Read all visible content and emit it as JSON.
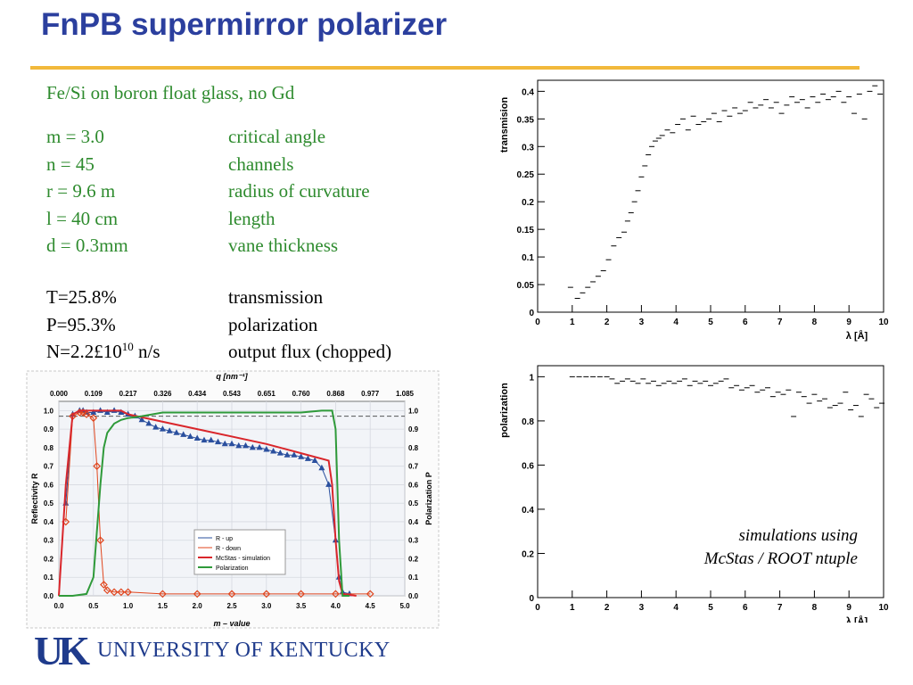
{
  "slide": {
    "title": "FnPB supermirror polarizer",
    "subtitle": "Fe/Si on boron float glass, no Gd",
    "params": [
      {
        "k": "m = 3.0",
        "v": "critical angle"
      },
      {
        "k": "n  = 45",
        "v": "channels"
      },
      {
        "k": "r   = 9.6 m",
        "v": "radius of curvature"
      },
      {
        "k": "l   = 40 cm",
        "v": "length"
      },
      {
        "k": "d  = 0.3mm",
        "v": "vane thickness"
      }
    ],
    "results": [
      {
        "k": "T=25.8%",
        "v": "transmission"
      },
      {
        "k": "P=95.3%",
        "v": "polarization"
      },
      {
        "k_base": "N=2.2£10",
        "k_exp": "10",
        "k_unit": " n/s",
        "v": "output flux (chopped)"
      }
    ],
    "caption_line1": "simulations using",
    "caption_line2": "McStas / ROOT ntuple",
    "logo_mark": "UK",
    "logo_text": "UNIVERSITY OF KENTUCKY",
    "colors": {
      "title": "#2b3f9e",
      "rule": "#f2b93b",
      "green_text": "#2e8b2e",
      "logo": "#1f3b8c"
    }
  },
  "chart_data": [
    {
      "id": "exp",
      "type": "line",
      "xlabel": "m – value",
      "top_axis_label": "q [nm⁻¹]",
      "ylabel_left": "Reflectivity R",
      "ylabel_right": "Polarization P",
      "xlim": [
        0,
        5.0
      ],
      "ylim": [
        0,
        1.05
      ],
      "x_ticks": [
        "0.0",
        "0.5",
        "1.0",
        "1.5",
        "2.0",
        "2.5",
        "3.0",
        "3.5",
        "4.0",
        "4.5",
        "5.0"
      ],
      "top_ticks": [
        "0.000",
        "0.109",
        "0.217",
        "0.326",
        "0.434",
        "0.543",
        "0.651",
        "0.760",
        "0.868",
        "0.977",
        "1.085"
      ],
      "y_ticks": [
        "0.0",
        "0.1",
        "0.2",
        "0.3",
        "0.4",
        "0.5",
        "0.6",
        "0.7",
        "0.8",
        "0.9",
        "1.0"
      ],
      "legend": [
        "R - up",
        "R - down",
        "McStas - simulation",
        "Polarization"
      ],
      "legend_position": "lower-center",
      "colors": {
        "up": "#2a4f9e",
        "down": "#e0461e",
        "sim": "#d9262b",
        "pol": "#2f9a3a",
        "ref": "#555555"
      },
      "dashed_reference": 0.97,
      "series": [
        {
          "name": "R - up",
          "x": [
            0.1,
            0.2,
            0.3,
            0.35,
            0.4,
            0.5,
            0.6,
            0.7,
            0.8,
            0.9,
            1.0,
            1.1,
            1.2,
            1.3,
            1.4,
            1.5,
            1.6,
            1.7,
            1.8,
            1.9,
            2.0,
            2.1,
            2.2,
            2.3,
            2.4,
            2.5,
            2.6,
            2.7,
            2.8,
            2.9,
            3.0,
            3.1,
            3.2,
            3.3,
            3.4,
            3.5,
            3.6,
            3.7,
            3.8,
            3.9,
            4.0,
            4.05,
            4.1,
            4.2
          ],
          "y": [
            0.5,
            0.98,
            1.0,
            1.0,
            0.99,
            0.99,
            1.0,
            0.99,
            1.0,
            0.99,
            0.98,
            0.97,
            0.95,
            0.93,
            0.91,
            0.9,
            0.89,
            0.88,
            0.87,
            0.86,
            0.85,
            0.84,
            0.84,
            0.83,
            0.82,
            0.82,
            0.81,
            0.81,
            0.8,
            0.8,
            0.79,
            0.78,
            0.77,
            0.76,
            0.76,
            0.75,
            0.74,
            0.73,
            0.69,
            0.6,
            0.3,
            0.1,
            0.02,
            0.01
          ]
        },
        {
          "name": "R - down",
          "x": [
            0.1,
            0.2,
            0.3,
            0.35,
            0.4,
            0.5,
            0.55,
            0.6,
            0.65,
            0.7,
            0.8,
            0.9,
            1.0,
            1.5,
            2.0,
            2.5,
            3.0,
            3.5,
            4.0,
            4.5
          ],
          "y": [
            0.4,
            0.97,
            0.99,
            0.99,
            0.98,
            0.96,
            0.7,
            0.3,
            0.06,
            0.03,
            0.02,
            0.02,
            0.02,
            0.01,
            0.01,
            0.01,
            0.01,
            0.01,
            0.01,
            0.01
          ]
        },
        {
          "name": "McStas - simulation",
          "x": [
            0.0,
            0.1,
            0.2,
            0.3,
            0.5,
            0.9,
            1.0,
            2.0,
            3.0,
            3.5,
            3.9,
            3.95,
            4.0,
            4.05,
            4.1,
            4.3
          ],
          "y": [
            0.0,
            0.6,
            0.98,
            1.0,
            1.0,
            1.0,
            0.98,
            0.9,
            0.82,
            0.77,
            0.73,
            0.6,
            0.3,
            0.08,
            0.01,
            0.0
          ]
        },
        {
          "name": "Polarization",
          "x": [
            0.0,
            0.2,
            0.4,
            0.5,
            0.6,
            0.65,
            0.7,
            0.8,
            0.9,
            1.0,
            1.2,
            1.5,
            2.0,
            2.5,
            3.0,
            3.5,
            3.8,
            3.95,
            4.0,
            4.05,
            4.1,
            4.2
          ],
          "y": [
            0.0,
            0.0,
            0.01,
            0.1,
            0.6,
            0.8,
            0.88,
            0.93,
            0.95,
            0.96,
            0.97,
            0.99,
            0.99,
            0.99,
            0.99,
            0.99,
            1.0,
            1.0,
            0.9,
            0.3,
            0.0,
            0.0
          ]
        }
      ]
    },
    {
      "id": "trans",
      "type": "scatter",
      "xlabel": "λ  [Å]",
      "ylabel": "transmision",
      "xlim": [
        0,
        10
      ],
      "ylim": [
        0,
        0.42
      ],
      "x_ticks": [
        "0",
        "1",
        "2",
        "3",
        "4",
        "5",
        "6",
        "7",
        "8",
        "9",
        "10"
      ],
      "y_ticks": [
        "0",
        "0.05",
        "0.1",
        "0.15",
        "0.2",
        "0.25",
        "0.3",
        "0.35",
        "0.4"
      ],
      "series": [
        {
          "name": "",
          "x": [
            0.95,
            1.05,
            1.15,
            1.3,
            1.45,
            1.6,
            1.75,
            1.9,
            2.05,
            2.2,
            2.35,
            2.5,
            2.6,
            2.7,
            2.8,
            2.9,
            3.0,
            3.1,
            3.2,
            3.3,
            3.4,
            3.5,
            3.6,
            3.75,
            3.9,
            4.05,
            4.2,
            4.35,
            4.5,
            4.65,
            4.8,
            4.95,
            5.1,
            5.25,
            5.4,
            5.55,
            5.7,
            5.85,
            6.0,
            6.15,
            6.3,
            6.45,
            6.6,
            6.75,
            6.9,
            7.05,
            7.2,
            7.35,
            7.5,
            7.65,
            7.8,
            7.95,
            8.1,
            8.25,
            8.4,
            8.55,
            8.7,
            8.85,
            9.0,
            9.15,
            9.3,
            9.45,
            9.6,
            9.75,
            9.9
          ],
          "y": [
            0.045,
            0.0,
            0.025,
            0.035,
            0.045,
            0.055,
            0.065,
            0.075,
            0.095,
            0.12,
            0.135,
            0.145,
            0.165,
            0.18,
            0.2,
            0.22,
            0.245,
            0.265,
            0.285,
            0.3,
            0.31,
            0.315,
            0.32,
            0.33,
            0.325,
            0.34,
            0.35,
            0.33,
            0.355,
            0.34,
            0.345,
            0.35,
            0.36,
            0.345,
            0.365,
            0.355,
            0.37,
            0.36,
            0.365,
            0.38,
            0.37,
            0.375,
            0.385,
            0.37,
            0.38,
            0.36,
            0.375,
            0.39,
            0.38,
            0.385,
            0.37,
            0.39,
            0.38,
            0.395,
            0.385,
            0.39,
            0.4,
            0.38,
            0.39,
            0.36,
            0.395,
            0.35,
            0.4,
            0.41,
            0.395
          ]
        }
      ]
    },
    {
      "id": "pol",
      "type": "scatter",
      "xlabel": "λ [Å]",
      "ylabel": "polarization",
      "xlim": [
        0,
        10
      ],
      "ylim": [
        0,
        1.05
      ],
      "x_ticks": [
        "0",
        "1",
        "2",
        "3",
        "4",
        "5",
        "6",
        "7",
        "8",
        "9",
        "10"
      ],
      "y_ticks": [
        "0",
        "0.2",
        "0.4",
        "0.6",
        "0.8",
        "1"
      ],
      "series": [
        {
          "name": "",
          "x": [
            1.0,
            1.2,
            1.4,
            1.6,
            1.8,
            2.0,
            2.15,
            2.3,
            2.45,
            2.6,
            2.75,
            2.9,
            3.05,
            3.2,
            3.35,
            3.5,
            3.65,
            3.8,
            3.95,
            4.1,
            4.25,
            4.4,
            4.55,
            4.7,
            4.85,
            5.0,
            5.15,
            5.3,
            5.45,
            5.6,
            5.75,
            5.9,
            6.05,
            6.2,
            6.35,
            6.5,
            6.65,
            6.8,
            6.95,
            7.1,
            7.25,
            7.4,
            7.55,
            7.7,
            7.85,
            8.0,
            8.15,
            8.3,
            8.45,
            8.6,
            8.75,
            8.9,
            9.05,
            9.2,
            9.35,
            9.5,
            9.65,
            9.8,
            9.95
          ],
          "y": [
            1.0,
            1.0,
            1.0,
            1.0,
            1.0,
            1.0,
            0.99,
            0.97,
            0.98,
            0.99,
            0.98,
            0.97,
            0.99,
            0.97,
            0.98,
            0.96,
            0.97,
            0.98,
            0.97,
            0.98,
            0.99,
            0.96,
            0.98,
            0.97,
            0.98,
            0.96,
            0.97,
            0.98,
            0.99,
            0.95,
            0.96,
            0.94,
            0.95,
            0.96,
            0.93,
            0.94,
            0.95,
            0.91,
            0.93,
            0.92,
            0.94,
            0.82,
            0.93,
            0.91,
            0.88,
            0.92,
            0.89,
            0.9,
            0.86,
            0.87,
            0.88,
            0.93,
            0.85,
            0.87,
            0.82,
            0.92,
            0.9,
            0.86,
            0.88
          ]
        }
      ]
    }
  ]
}
